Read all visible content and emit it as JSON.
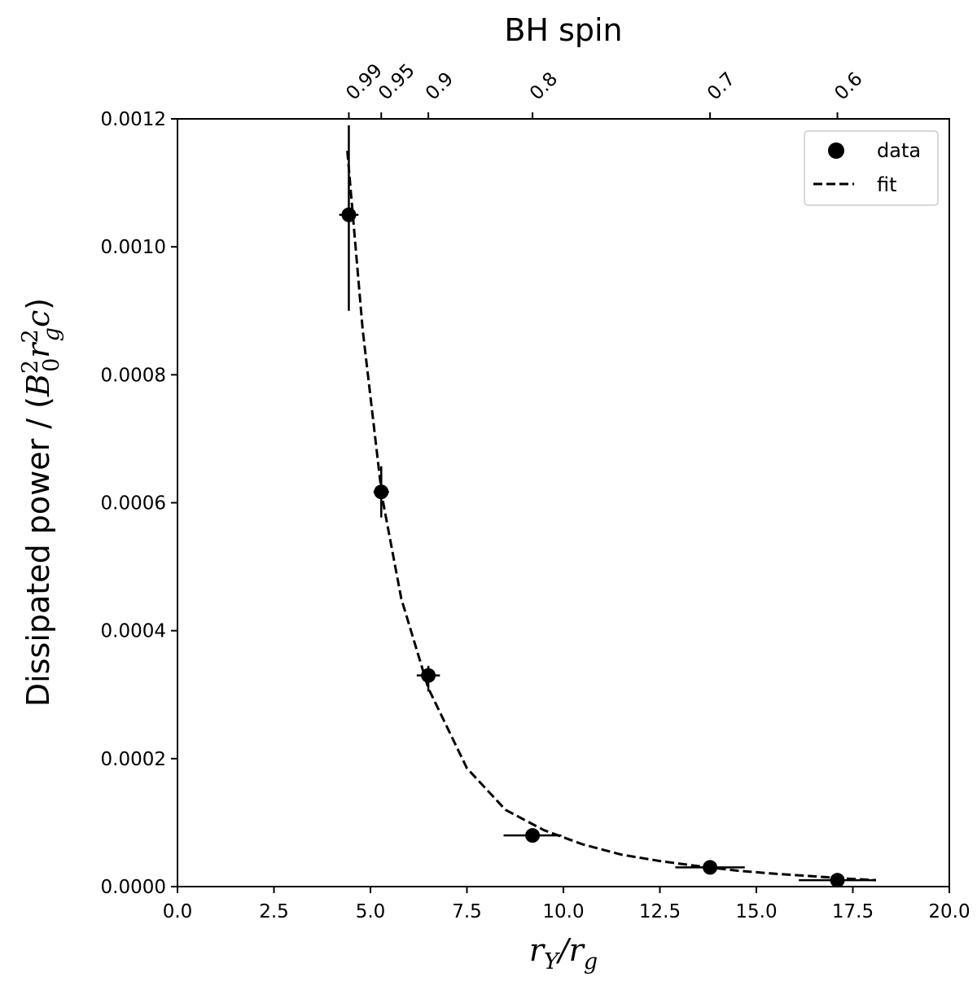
{
  "chart_data": {
    "type": "scatter",
    "title": "",
    "xlabel": "r_Y/r_g",
    "ylabel": "Dissipated power / (B_0^2 r_g^2 c)",
    "xlim": [
      0.0,
      20.0
    ],
    "ylim": [
      0.0,
      0.0012
    ],
    "x_ticks": [
      "0.0",
      "2.5",
      "5.0",
      "7.5",
      "10.0",
      "12.5",
      "15.0",
      "17.5",
      "20.0"
    ],
    "y_ticks": [
      "0.0000",
      "0.0002",
      "0.0004",
      "0.0006",
      "0.0008",
      "0.0010",
      "0.0012"
    ],
    "top_axis": {
      "label": "BH spin",
      "ticks": [
        {
          "label": "0.99",
          "x": 4.44
        },
        {
          "label": "0.95",
          "x": 5.28
        },
        {
          "label": "0.9",
          "x": 6.5
        },
        {
          "label": "0.8",
          "x": 9.2
        },
        {
          "label": "0.7",
          "x": 13.8
        },
        {
          "label": "0.6",
          "x": 17.1
        }
      ]
    },
    "legend": {
      "position": "top-right",
      "entries": [
        "data",
        "fit"
      ]
    },
    "grid": false,
    "series": [
      {
        "name": "data",
        "style": "markers",
        "points": [
          {
            "x": 4.44,
            "y": 0.00105,
            "xerr": 0.25,
            "yerr_low": 0.00015,
            "yerr_high": 0.00014
          },
          {
            "x": 5.28,
            "y": 0.000617,
            "xerr": 0.2,
            "yerr_low": 4e-05,
            "yerr_high": 4e-05
          },
          {
            "x": 6.5,
            "y": 0.00033,
            "xerr": 0.3,
            "yerr_low": 2.5e-05,
            "yerr_high": 1.5e-05
          },
          {
            "x": 9.2,
            "y": 8e-05,
            "xerr": 0.75,
            "yerr_low": 8e-06,
            "yerr_high": 8e-06
          },
          {
            "x": 13.8,
            "y": 3e-05,
            "xerr": 0.9,
            "yerr_low": 3e-06,
            "yerr_high": 3e-06
          },
          {
            "x": 17.1,
            "y": 1e-05,
            "xerr": 1.0,
            "yerr_low": 2e-06,
            "yerr_high": 2e-06
          }
        ]
      },
      {
        "name": "fit",
        "style": "dashed",
        "x": [
          4.4,
          4.8,
          5.3,
          5.8,
          6.5,
          7.5,
          8.5,
          9.5,
          10.5,
          11.5,
          12.5,
          13.5,
          14.5,
          15.5,
          16.5,
          17.5,
          18.1
        ],
        "y": [
          0.00115,
          0.00087,
          0.00061,
          0.00045,
          0.00031,
          0.000185,
          0.00012,
          8.8e-05,
          6.6e-05,
          5e-05,
          4e-05,
          3.2e-05,
          2.5e-05,
          2e-05,
          1.6e-05,
          1.2e-05,
          1e-05
        ]
      }
    ]
  }
}
